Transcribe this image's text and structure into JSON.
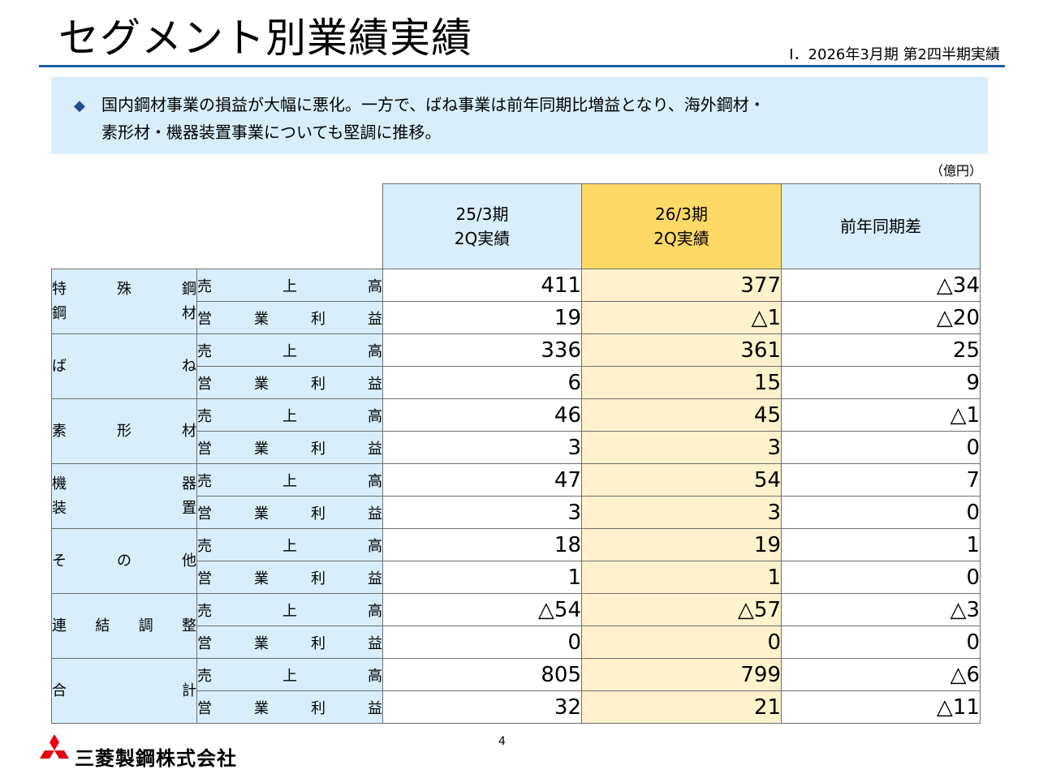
{
  "header": {
    "title": "セグメント別業績実績",
    "subtitle": "Ⅰ．2026年3月期 第2四半期実績"
  },
  "summary": {
    "line1": "国内鋼材事業の損益が大幅に悪化。一方で、ばね事業は前年同期比増益となり、海外鋼材・",
    "line2": "素形材・機器装置事業についても堅調に推移。",
    "bullet_icon": "diamond-bullet-icon"
  },
  "table": {
    "unit": "（億円）",
    "columns": [
      {
        "line1": "25/3期",
        "line2": "2Q実績"
      },
      {
        "line1": "26/3期",
        "line2": "2Q実績"
      },
      {
        "line1": "前年同期差",
        "line2": ""
      }
    ],
    "segments": [
      {
        "name_lines": [
          [
            "特",
            "殊",
            "鋼"
          ],
          [
            "鋼",
            "材"
          ]
        ],
        "rows": [
          {
            "item": [
              "売",
              "上",
              "高"
            ],
            "values": [
              "411",
              "377",
              "△34"
            ]
          },
          {
            "item": [
              "営",
              "業",
              "利",
              "益"
            ],
            "values": [
              "19",
              "△1",
              "△20"
            ]
          }
        ]
      },
      {
        "name_lines": [
          [
            "ば",
            "ね"
          ]
        ],
        "rows": [
          {
            "item": [
              "売",
              "上",
              "高"
            ],
            "values": [
              "336",
              "361",
              "25"
            ]
          },
          {
            "item": [
              "営",
              "業",
              "利",
              "益"
            ],
            "values": [
              "6",
              "15",
              "9"
            ]
          }
        ]
      },
      {
        "name_lines": [
          [
            "素",
            "形",
            "材"
          ]
        ],
        "rows": [
          {
            "item": [
              "売",
              "上",
              "高"
            ],
            "values": [
              "46",
              "45",
              "△1"
            ]
          },
          {
            "item": [
              "営",
              "業",
              "利",
              "益"
            ],
            "values": [
              "3",
              "3",
              "0"
            ]
          }
        ]
      },
      {
        "name_lines": [
          [
            "機",
            "器"
          ],
          [
            "装",
            "置"
          ]
        ],
        "rows": [
          {
            "item": [
              "売",
              "上",
              "高"
            ],
            "values": [
              "47",
              "54",
              "7"
            ]
          },
          {
            "item": [
              "営",
              "業",
              "利",
              "益"
            ],
            "values": [
              "3",
              "3",
              "0"
            ]
          }
        ]
      },
      {
        "name_lines": [
          [
            "そ",
            "の",
            "他"
          ]
        ],
        "rows": [
          {
            "item": [
              "売",
              "上",
              "高"
            ],
            "values": [
              "18",
              "19",
              "1"
            ]
          },
          {
            "item": [
              "営",
              "業",
              "利",
              "益"
            ],
            "values": [
              "1",
              "1",
              "0"
            ]
          }
        ]
      },
      {
        "name_lines": [
          [
            "連",
            "結",
            "調",
            "整"
          ]
        ],
        "rows": [
          {
            "item": [
              "売",
              "上",
              "高"
            ],
            "values": [
              "△54",
              "△57",
              "△3"
            ]
          },
          {
            "item": [
              "営",
              "業",
              "利",
              "益"
            ],
            "values": [
              "0",
              "0",
              "0"
            ]
          }
        ]
      },
      {
        "name_lines": [
          [
            "合",
            "計"
          ]
        ],
        "rows": [
          {
            "item": [
              "売",
              "上",
              "高"
            ],
            "values": [
              "805",
              "799",
              "△6"
            ]
          },
          {
            "item": [
              "営",
              "業",
              "利",
              "益"
            ],
            "values": [
              "32",
              "21",
              "△11"
            ]
          }
        ]
      }
    ]
  },
  "footer": {
    "page_number": "4",
    "company": "三菱製鋼株式会社",
    "logo_icon": "three-diamonds-logo-icon"
  },
  "colors": {
    "accent_blue": "#1f5aa6",
    "light_blue": "#d9eefa",
    "highlight_header": "#ffd966",
    "highlight_cells": "#fff2cc",
    "logo_red": "#e60012"
  }
}
